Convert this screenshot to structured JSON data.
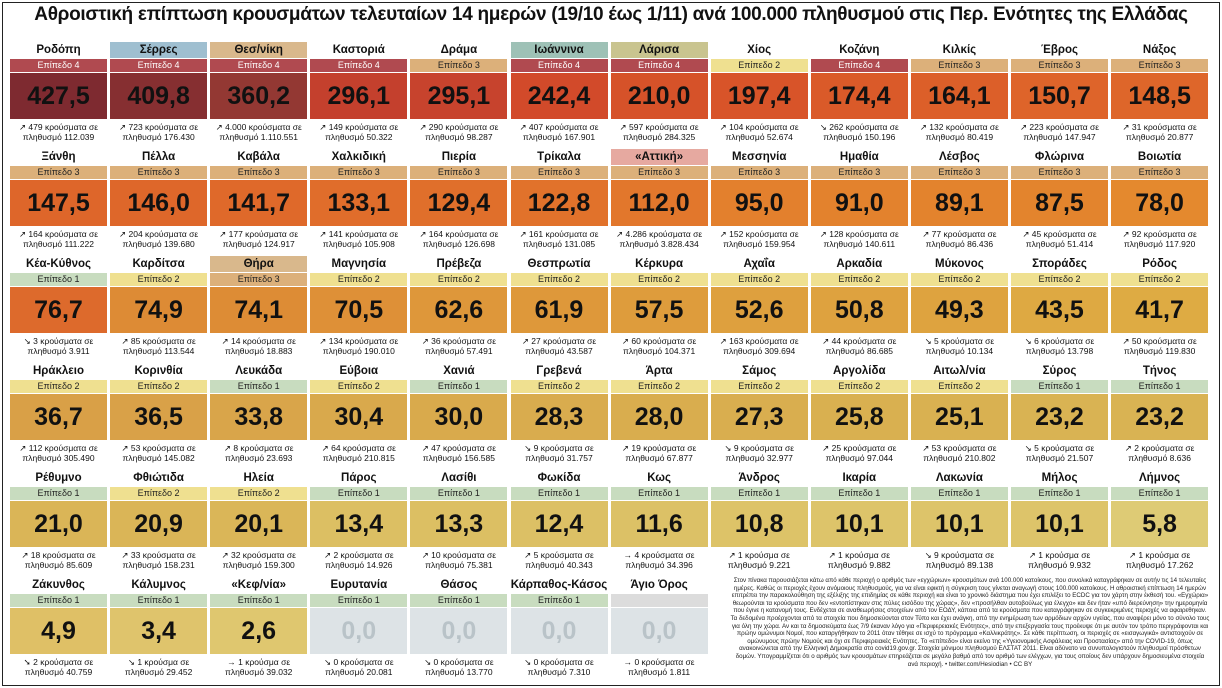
{
  "title": "Αθροιστική επίπτωση κρουσμάτων τελευταίων 14 ημερών (19/10 έως 1/11) ανά 100.000 πληθυσμού στις Περ. Ενότητες της Ελλάδας",
  "rows": [
    [
      {
        "name": "Ροδόπη",
        "level": "Επίπεδο 4",
        "value": "427,5",
        "info": "↗ 479 κρούσματα σε πληθυσμό 112.039",
        "lvl": 4,
        "color": "#7e2a30",
        "hl": ""
      },
      {
        "name": "Σέρρες",
        "level": "Επίπεδο 4",
        "value": "409,8",
        "info": "↗ 723 κρούσματα σε πληθυσμό 176.430",
        "lvl": 4,
        "color": "#862f31",
        "hl": "hl-blue"
      },
      {
        "name": "Θεσ/νίκη",
        "level": "Επίπεδο 4",
        "value": "360,2",
        "info": "↗ 4.000 κρούσματα σε πληθυσμό 1.110.551",
        "lvl": 4,
        "color": "#933833",
        "hl": "hl-tan"
      },
      {
        "name": "Καστοριά",
        "level": "Επίπεδο 4",
        "value": "296,1",
        "info": "↗ 149 κρούσματα σε πληθυσμό 50.322",
        "lvl": 4,
        "color": "#c4402d",
        "hl": ""
      },
      {
        "name": "Δράμα",
        "level": "Επίπεδο 3",
        "value": "295,1",
        "info": "↗ 290 κρούσματα σε πληθυσμό 98.287",
        "lvl": 3,
        "color": "#c7432d",
        "hl": ""
      },
      {
        "name": "Ιωάννινα",
        "level": "Επίπεδο 4",
        "value": "242,4",
        "info": "↗ 407 κρούσματα σε πληθυσμό 167.901",
        "lvl": 4,
        "color": "#d24a2a",
        "hl": "hl-teal"
      },
      {
        "name": "Λάρισα",
        "level": "Επίπεδο 4",
        "value": "210,0",
        "info": "↗ 597 κρούσματα σε πληθυσμό 284.325",
        "lvl": 4,
        "color": "#d65229",
        "hl": "hl-olive"
      },
      {
        "name": "Χίος",
        "level": "Επίπεδο 2",
        "value": "197,4",
        "info": "↗ 104 κρούσματα σε πληθυσμό 52.674",
        "lvl": 2,
        "color": "#d85429",
        "hl": ""
      },
      {
        "name": "Κοζάνη",
        "level": "Επίπεδο 4",
        "value": "174,4",
        "info": "↘ 262 κρούσματα σε πληθυσμό 150.196",
        "lvl": 4,
        "color": "#da5a29",
        "hl": ""
      },
      {
        "name": "Κιλκίς",
        "level": "Επίπεδο 3",
        "value": "164,1",
        "info": "↗ 132 κρούσματα σε πληθυσμό 80.419",
        "lvl": 3,
        "color": "#dc5f29",
        "hl": ""
      },
      {
        "name": "Έβρος",
        "level": "Επίπεδο 3",
        "value": "150,7",
        "info": "↗ 223 κρούσματα σε πληθυσμό 147.947",
        "lvl": 3,
        "color": "#de642a",
        "hl": ""
      },
      {
        "name": "Νάξος",
        "level": "Επίπεδο 3",
        "value": "148,5",
        "info": "↗ 31 κρούσματα σε πληθυσμό 20.877",
        "lvl": 3,
        "color": "#de662a",
        "hl": ""
      }
    ],
    [
      {
        "name": "Ξάνθη",
        "level": "Επίπεδο 3",
        "value": "147,5",
        "info": "↗ 164 κρούσματα σε πληθυσμό 111.222",
        "lvl": 3,
        "color": "#de662a",
        "hl": ""
      },
      {
        "name": "Πέλλα",
        "level": "Επίπεδο 3",
        "value": "146,0",
        "info": "↗ 204 κρούσματα σε πληθυσμό 139.680",
        "lvl": 3,
        "color": "#de672a",
        "hl": ""
      },
      {
        "name": "Καβάλα",
        "level": "Επίπεδο 3",
        "value": "141,7",
        "info": "↗ 177 κρούσματα σε πληθυσμό 124.917",
        "lvl": 3,
        "color": "#df692a",
        "hl": ""
      },
      {
        "name": "Χαλκιδική",
        "level": "Επίπεδο 3",
        "value": "133,1",
        "info": "↗ 141 κρούσματα σε πληθυσμό 105.908",
        "lvl": 3,
        "color": "#e06d2b",
        "hl": ""
      },
      {
        "name": "Πιερία",
        "level": "Επίπεδο 3",
        "value": "129,4",
        "info": "↗ 164 κρούσματα σε πληθυσμό 126.698",
        "lvl": 3,
        "color": "#e06f2b",
        "hl": ""
      },
      {
        "name": "Τρίκαλα",
        "level": "Επίπεδο 3",
        "value": "122,8",
        "info": "↗ 161 κρούσματα σε πληθυσμό 131.085",
        "lvl": 3,
        "color": "#e1722b",
        "hl": ""
      },
      {
        "name": "«Αττική»",
        "level": "Επίπεδο 3",
        "value": "112,0",
        "info": "↗ 4.286 κρούσματα σε πληθυσμό 3.828.434",
        "lvl": 3,
        "color": "#e2772c",
        "hl": "hl-pink"
      },
      {
        "name": "Μεσσηνία",
        "level": "Επίπεδο 3",
        "value": "95,0",
        "info": "↗ 152 κρούσματα σε πληθυσμό 159.954",
        "lvl": 3,
        "color": "#e3802d",
        "hl": ""
      },
      {
        "name": "Ημαθία",
        "level": "Επίπεδο 3",
        "value": "91,0",
        "info": "↗ 128 κρούσματα σε πληθυσμό 140.611",
        "lvl": 3,
        "color": "#e3822d",
        "hl": ""
      },
      {
        "name": "Λέσβος",
        "level": "Επίπεδο 3",
        "value": "89,1",
        "info": "↗ 77 κρούσματα σε πληθυσμό 86.436",
        "lvl": 3,
        "color": "#e3832d",
        "hl": ""
      },
      {
        "name": "Φλώρινα",
        "level": "Επίπεδο 3",
        "value": "87,5",
        "info": "↗ 45 κρούσματα σε πληθυσμό 51.414",
        "lvl": 3,
        "color": "#e3842d",
        "hl": ""
      },
      {
        "name": "Βοιωτία",
        "level": "Επίπεδο 3",
        "value": "78,0",
        "info": "↗ 92 κρούσματα σε πληθυσμό 117.920",
        "lvl": 3,
        "color": "#e4892e",
        "hl": ""
      }
    ],
    [
      {
        "name": "Κέα-Κύθνος",
        "level": "Επίπεδο 1",
        "value": "76,7",
        "info": "↘ 3 κρούσματα σε πληθυσμό 3.911",
        "lvl": 1,
        "color": "#dd6a2c",
        "hl": ""
      },
      {
        "name": "Καρδίτσα",
        "level": "Επίπεδο 2",
        "value": "74,9",
        "info": "↗ 85 κρούσματα σε πληθυσμό 113.544",
        "lvl": 2,
        "color": "#dd8b35",
        "hl": ""
      },
      {
        "name": "Θήρα",
        "level": "Επίπεδο 3",
        "value": "74,1",
        "info": "↗ 14 κρούσματα σε πληθυσμό 18.883",
        "lvl": 3,
        "color": "#dd8c35",
        "hl": "hl-tan"
      },
      {
        "name": "Μαγνησία",
        "level": "Επίπεδο 2",
        "value": "70,5",
        "info": "↗ 134 κρούσματα σε πληθυσμό 190.010",
        "lvl": 2,
        "color": "#de9037",
        "hl": ""
      },
      {
        "name": "Πρέβεζα",
        "level": "Επίπεδο 2",
        "value": "62,6",
        "info": "↗ 36 κρούσματα σε πληθυσμό 57.491",
        "lvl": 2,
        "color": "#de973a",
        "hl": ""
      },
      {
        "name": "Θεσπρωτία",
        "level": "Επίπεδο 2",
        "value": "61,9",
        "info": "↗ 27 κρούσματα σε πληθυσμό 43.587",
        "lvl": 2,
        "color": "#de983a",
        "hl": ""
      },
      {
        "name": "Κέρκυρα",
        "level": "Επίπεδο 2",
        "value": "57,5",
        "info": "↗ 60 κρούσματα σε πληθυσμό 104.371",
        "lvl": 2,
        "color": "#de9c3c",
        "hl": ""
      },
      {
        "name": "Αχαΐα",
        "level": "Επίπεδο 2",
        "value": "52,6",
        "info": "↗ 163 κρούσματα σε πληθυσμό 309.694",
        "lvl": 2,
        "color": "#dea03e",
        "hl": ""
      },
      {
        "name": "Αρκαδία",
        "level": "Επίπεδο 2",
        "value": "50,8",
        "info": "↗ 44 κρούσματα σε πληθυσμό 86.685",
        "lvl": 2,
        "color": "#dea23f",
        "hl": ""
      },
      {
        "name": "Μύκονος",
        "level": "Επίπεδο 2",
        "value": "49,3",
        "info": "↘ 5 κρούσματα σε πληθυσμό 10.134",
        "lvl": 2,
        "color": "#dea33f",
        "hl": ""
      },
      {
        "name": "Σποράδες",
        "level": "Επίπεδο 2",
        "value": "43,5",
        "info": "↘ 6 κρούσματα σε πληθυσμό 13.798",
        "lvl": 2,
        "color": "#dea942",
        "hl": ""
      },
      {
        "name": "Ρόδος",
        "level": "Επίπεδο 2",
        "value": "41,7",
        "info": "↗ 50 κρούσματα σε πληθυσμό 119.830",
        "lvl": 2,
        "color": "#deab43",
        "hl": ""
      }
    ],
    [
      {
        "name": "Ηράκλειο",
        "level": "Επίπεδο 2",
        "value": "36,7",
        "info": "↗ 112 κρούσματα σε πληθυσμό 305.490",
        "lvl": 2,
        "color": "#d9a047",
        "hl": ""
      },
      {
        "name": "Κορινθία",
        "level": "Επίπεδο 2",
        "value": "36,5",
        "info": "↗ 53 κρούσματα σε πληθυσμό 145.082",
        "lvl": 2,
        "color": "#d9a148",
        "hl": ""
      },
      {
        "name": "Λευκάδα",
        "level": "Επίπεδο 1",
        "value": "33,8",
        "info": "↗ 8 κρούσματα σε πληθυσμό 23.693",
        "lvl": 1,
        "color": "#d9a54a",
        "hl": ""
      },
      {
        "name": "Εύβοια",
        "level": "Επίπεδο 2",
        "value": "30,4",
        "info": "↗ 64 κρούσματα σε πληθυσμό 210.815",
        "lvl": 2,
        "color": "#d9a94c",
        "hl": ""
      },
      {
        "name": "Χανιά",
        "level": "Επίπεδο 1",
        "value": "30,0",
        "info": "↗ 47 κρούσματα σε πληθυσμό 156.585",
        "lvl": 1,
        "color": "#d9aa4c",
        "hl": ""
      },
      {
        "name": "Γρεβενά",
        "level": "Επίπεδο 2",
        "value": "28,3",
        "info": "↘ 9 κρούσματα σε πληθυσμό 31.757",
        "lvl": 2,
        "color": "#d9ac4e",
        "hl": ""
      },
      {
        "name": "Άρτα",
        "level": "Επίπεδο 2",
        "value": "28,0",
        "info": "↗ 19 κρούσματα σε πληθυσμό 67.877",
        "lvl": 2,
        "color": "#d9ad4e",
        "hl": ""
      },
      {
        "name": "Σάμος",
        "level": "Επίπεδο 2",
        "value": "27,3",
        "info": "↘ 9 κρούσματα σε πληθυσμό 32.977",
        "lvl": 2,
        "color": "#d9ae4f",
        "hl": ""
      },
      {
        "name": "Αργολίδα",
        "level": "Επίπεδο 2",
        "value": "25,8",
        "info": "↗ 25 κρούσματα σε πληθυσμό 97.044",
        "lvl": 2,
        "color": "#d9b050",
        "hl": ""
      },
      {
        "name": "Αιτωλ/νία",
        "level": "Επίπεδο 2",
        "value": "25,1",
        "info": "↗ 53 κρούσματα σε πληθυσμό 210.802",
        "lvl": 2,
        "color": "#d9b151",
        "hl": ""
      },
      {
        "name": "Σύρος",
        "level": "Επίπεδο 1",
        "value": "23,2",
        "info": "↘ 5 κρούσματα σε πληθυσμό 21.507",
        "lvl": 1,
        "color": "#d9b353",
        "hl": ""
      },
      {
        "name": "Τήνος",
        "level": "Επίπεδο 1",
        "value": "23,2",
        "info": "↗ 2 κρούσματα σε πληθυσμό 8.636",
        "lvl": 1,
        "color": "#d9b353",
        "hl": ""
      }
    ],
    [
      {
        "name": "Ρέθυμνο",
        "level": "Επίπεδο 1",
        "value": "21,0",
        "info": "↗ 18 κρούσματα σε πληθυσμό 85.609",
        "lvl": 1,
        "color": "#dab557",
        "hl": ""
      },
      {
        "name": "Φθιώτιδα",
        "level": "Επίπεδο 2",
        "value": "20,9",
        "info": "↗ 33 κρούσματα σε πληθυσμό 158.231",
        "lvl": 2,
        "color": "#dab557",
        "hl": ""
      },
      {
        "name": "Ηλεία",
        "level": "Επίπεδο 2",
        "value": "20,1",
        "info": "↗ 32 κρούσματα σε πληθυσμό 159.300",
        "lvl": 2,
        "color": "#dab658",
        "hl": ""
      },
      {
        "name": "Πάρος",
        "level": "Επίπεδο 1",
        "value": "13,4",
        "info": "↗ 2 κρούσματα σε πληθυσμό 14.926",
        "lvl": 1,
        "color": "#dcbf63",
        "hl": ""
      },
      {
        "name": "Λασίθι",
        "level": "Επίπεδο 1",
        "value": "13,3",
        "info": "↗ 10 κρούσματα σε πληθυσμό 75.381",
        "lvl": 1,
        "color": "#dcbf63",
        "hl": ""
      },
      {
        "name": "Φωκίδα",
        "level": "Επίπεδο 1",
        "value": "12,4",
        "info": "↗ 5 κρούσματα σε πληθυσμό 40.343",
        "lvl": 1,
        "color": "#dcc065",
        "hl": ""
      },
      {
        "name": "Κως",
        "level": "Επίπεδο 1",
        "value": "11,6",
        "info": "→ 4 κρούσματα σε πληθυσμό 34.396",
        "lvl": 1,
        "color": "#dcc166",
        "hl": ""
      },
      {
        "name": "Άνδρος",
        "level": "Επίπεδο 1",
        "value": "10,8",
        "info": "↗ 1 κρούσμα σε πληθυσμό 9.221",
        "lvl": 1,
        "color": "#ddc368",
        "hl": ""
      },
      {
        "name": "Ικαρία",
        "level": "Επίπεδο 1",
        "value": "10,1",
        "info": "↗ 1 κρούσμα σε πληθυσμό 9.882",
        "lvl": 1,
        "color": "#ddc46a",
        "hl": ""
      },
      {
        "name": "Λακωνία",
        "level": "Επίπεδο 1",
        "value": "10,1",
        "info": "↘ 9 κρούσματα σε πληθυσμό 89.138",
        "lvl": 1,
        "color": "#ddc46a",
        "hl": ""
      },
      {
        "name": "Μήλος",
        "level": "Επίπεδο 1",
        "value": "10,1",
        "info": "↗ 1 κρούσμα σε πληθυσμό 9.932",
        "lvl": 1,
        "color": "#ddc46a",
        "hl": ""
      },
      {
        "name": "Λήμνος",
        "level": "Επίπεδο 1",
        "value": "5,8",
        "info": "↗ 1 κρούσμα σε πληθυσμό 17.262",
        "lvl": 1,
        "color": "#decb75",
        "hl": ""
      }
    ],
    [
      {
        "name": "Ζάκυνθος",
        "level": "Επίπεδο 1",
        "value": "4,9",
        "info": "➘ 2 κρούσματα σε πληθυσμό 40.759",
        "lvl": 1,
        "color": "#dfc066",
        "hl": ""
      },
      {
        "name": "Κάλυμνος",
        "level": "Επίπεδο 1",
        "value": "3,4",
        "info": "↘ 1 κρούσμα σε πληθυσμό 29.452",
        "lvl": 1,
        "color": "#dfc46c",
        "hl": ""
      },
      {
        "name": "«Κεφ/νία»",
        "level": "Επίπεδο 1",
        "value": "2,6",
        "info": "→ 1 κρούσμα σε πληθυσμό 39.032",
        "lvl": 1,
        "color": "#dfc76f",
        "hl": ""
      },
      {
        "name": "Ευρυτανία",
        "level": "Επίπεδο 1",
        "value": "0,0",
        "info": "↘ 0 κρούσματα σε πληθυσμό 20.081",
        "lvl": 1,
        "color": "#dde3e6",
        "hl": "",
        "zero": true
      },
      {
        "name": "Θάσος",
        "level": "Επίπεδο 1",
        "value": "0,0",
        "info": "↘ 0 κρούσματα σε πληθυσμό 13.770",
        "lvl": 1,
        "color": "#dde3e6",
        "hl": "",
        "zero": true
      },
      {
        "name": "Κάρπαθος-Κάσος",
        "level": "Επίπεδο 1",
        "value": "0,0",
        "info": "↘ 0 κρούσματα σε πληθυσμό 7.310",
        "lvl": 1,
        "color": "#dde3e6",
        "hl": "",
        "zero": true
      },
      {
        "name": "Άγιο Όρος",
        "level": "",
        "value": "0,0",
        "info": "→ 0 κρούσματα σε πληθυσμό 1.811",
        "lvl": 0,
        "color": "#dde3e6",
        "hl": "",
        "zero": true
      }
    ]
  ],
  "note": "Στον πίνακα παρουσιάζεται κάτω από κάθε περιοχή ο αριθμός των «εγχώριων» κρουσμάτων ανά 100.000 κατοίκους, που συνολικά καταγράφηκαν σε αυτήν τις 14 τελευταίες ημέρες. Καθώς οι περιοχές έχουν ανόμοιους πληθυσμούς, για να είναι εφικτή η σύγκριση τους γίνεται αναγωγή στους 100.000 κατοίκους. Η αθροιστική επίπτωση 14 ημερών επιτρέπει την παρακολούθηση της εξέλιξης της επιδημίας σε κάθε περιοχή και είναι το χρονικό διάστημα που έχει επιλέξει το ECDC για τον χάρτη στην έκθεσή του. «Εγχώρια» θεωρούνται τα κρούσματα που δεν «εντοπίστηκαν στις πύλες εισόδου της χώρας», δεν «προσήλθαν αυτοβούλως για έλεγχο» και δεν ήταν «υπό διερεύνηση» την ημερομηνία που έγινε η κατανομή τους. Ενδέχεται σε αναθεωρήσεις στοιχείων από τον ΕΟΔΥ, κάποια από τα κρούσματα που καταγράφηκαν σε συγκεκριμένες περιοχές να αφαιρεθηκαν. Τα δεδομένα προέρχονται από τα στοιχεία που δημοσιεύονται στον Τύπο και έχει ανάγκη, από την ενημέρωση των αρμόδιων αρχών υγείας, που αναφέρει μόνο το σύνολο τους για όλη την χώρα. Αν και τα δημοσιεύματα έως 7/9 έκαναν λόγο για «Περιφερειακές Ενότητες», από την επεξεργασία τους προέκυψε ότι με αυτόν τον τρόπο περιγράφονται και πρώην ομώνυμοι Νομοί, που καταργήθηκαν το 2011 όταν τέθηκε σε ισχύ το πρόγραμμα «Καλλικράτης». Σε κάθε περίπτωση, οι περιοχές σε «εισαγωγικά» αντιστοιχούν σε ομώνυμους πρώην Νομούς και όχι σε Περιφερειακές Ενότητες. Το «επίπεδο» είναι εκείνο της «Υγειονομικής Ασφάλειας και Προστασίας» από την COVID-19, όπως ανακοινώνεται από την Ελληνική Δημοκρατία στο covid19.gov.gr. Στοιχεία μόνιμου πληθυσμού ΕΛΣΤΑΤ 2011. Είναι αδύνατο να συνυπολογιστούν πληθυσμοί πρόσθετων δομών. Υπογραμμίζεται ότι ο αριθμός των κρουσμάτων επηρεάζεται σε μεγάλο βαθμό από τον αριθμό των ελέγχων, για τους οποίους δεν υπάρχουν δημοσιευμένα στοιχεία ανά περιοχή. • twitter.com/Hesiodian • CC BY"
}
